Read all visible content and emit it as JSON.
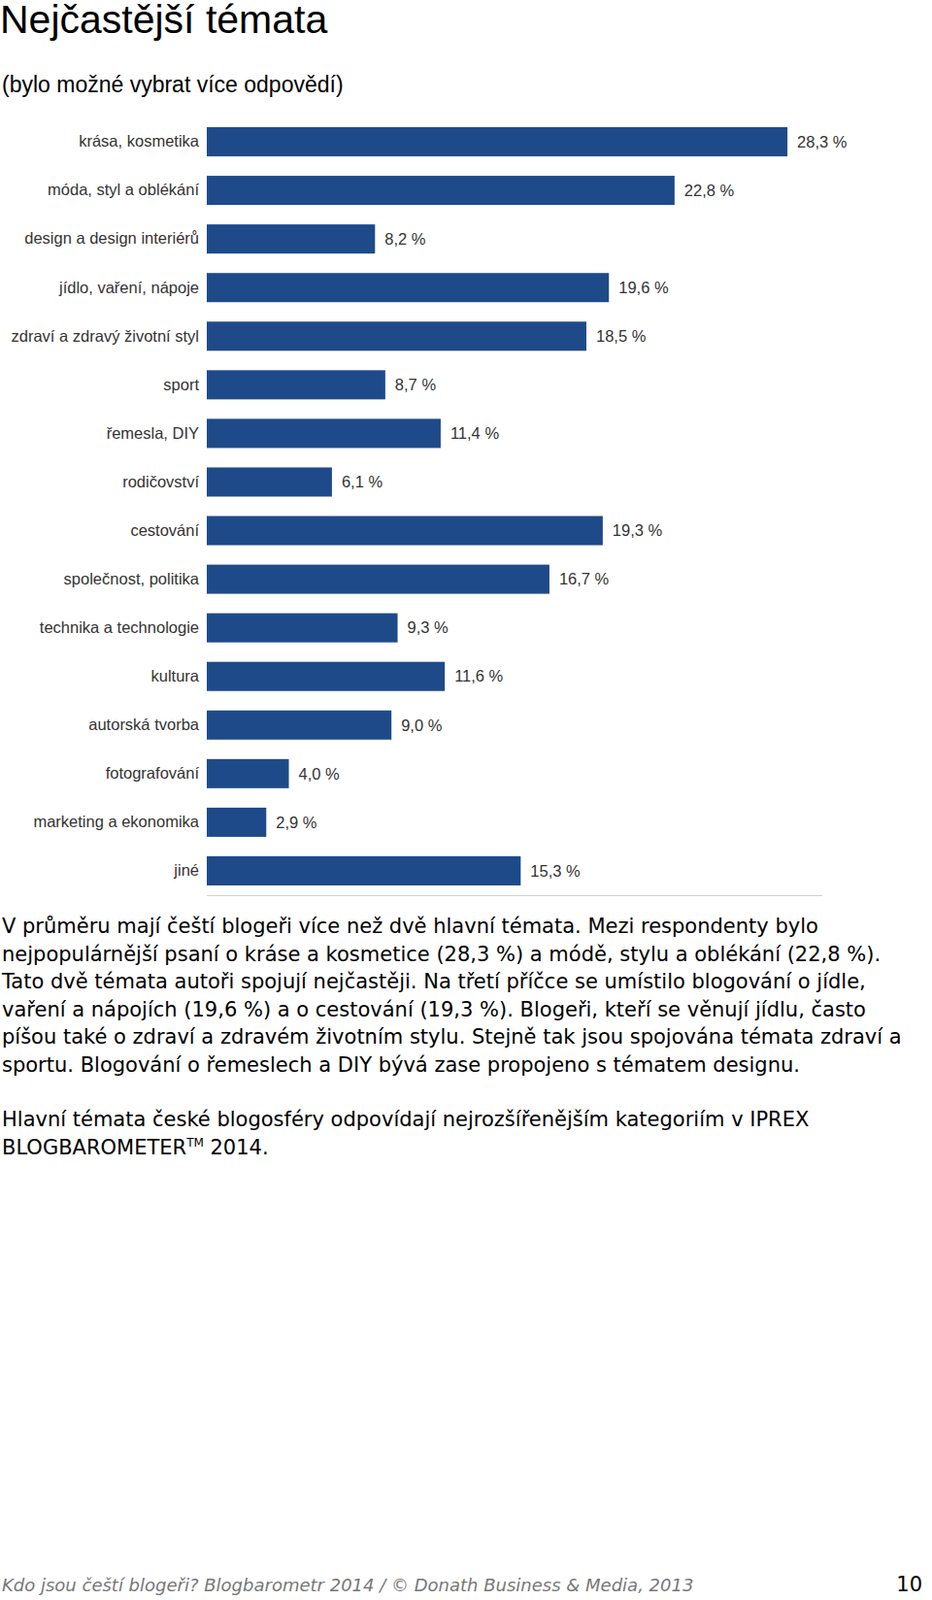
{
  "chart_data": {
    "type": "bar",
    "title": "Nejčastější témata",
    "subtitle": "(bylo možné vybrat více odpovědí)",
    "orientation": "horizontal",
    "data_labels": true,
    "tick_labels": "y",
    "color": "#1f4a8a",
    "xlim": [
      0,
      30
    ],
    "categories": [
      "krása, kosmetika",
      "móda, styl a oblékání",
      "design a design interiérů",
      "jídlo, vaření, nápoje",
      "zdraví a zdravý životní styl",
      "sport",
      "řemesla, DIY",
      "rodičovství",
      "cestování",
      "společnost, politika",
      "technika a technologie",
      "kultura",
      "autorská tvorba",
      "fotografování",
      "marketing a ekonomika",
      "jiné"
    ],
    "values": [
      28.3,
      22.8,
      8.2,
      19.6,
      18.5,
      8.7,
      11.4,
      6.1,
      19.3,
      16.7,
      9.3,
      11.6,
      9.0,
      4.0,
      2.9,
      15.3
    ],
    "value_labels": [
      "28,3 %",
      "22,8 %",
      "8,2 %",
      "19,6 %",
      "18,5 %",
      "8,7 %",
      "11,4 %",
      "6,1 %",
      "19,3 %",
      "16,7 %",
      "9,3 %",
      "11,6 %",
      "9,0 %",
      "4,0 %",
      "2,9 %",
      "15,3 %"
    ]
  },
  "page": {
    "paragraph_1": "V průměru mají čeští blogeři více než dvě hlavní témata. Mezi respondenty bylo nejpopulárnější psaní o kráse a kosmetice (28,3 %) a módě, stylu a oblékání (22,8 %). Tato dvě témata autoři spojují nejčastěji. Na třetí příčce se umístilo blogování o jídle, vaření a nápojích (19,6 %) a o cestování (19,3 %). Blogeři, kteří se věnují jídlu, často píšou také o zdraví a zdravém životním stylu. Stejně tak jsou spojována témata zdraví a sportu. Blogování o řemeslech a DIY bývá zase propojeno s tématem designu.",
    "paragraph_2": {
      "before": "Hlavní témata české blogosféry odpovídají nejrozšířenějším kategoriím v IPREX BLOGBAROMETER",
      "superscript": "TM",
      "after": " 2014."
    },
    "footer": "Kdo jsou čeští blogeři? Blogbarometr 2014 / © Donath Business & Media, 2013",
    "page_number": "10"
  }
}
